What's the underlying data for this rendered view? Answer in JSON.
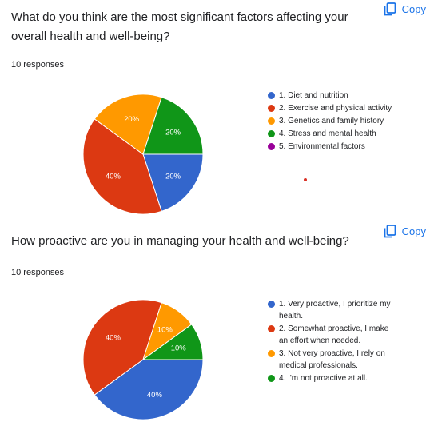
{
  "colors": {
    "blue": "#3366cc",
    "red": "#dc3912",
    "orange": "#ff9900",
    "green": "#109618",
    "purple": "#990099",
    "accent": "#1a73e8"
  },
  "copy_label": "Copy",
  "questions": [
    {
      "title": "What do you think are the most significant factors affecting your overall health and well-being?",
      "responses": "10 responses",
      "legend": [
        {
          "label": "1. Diet and nutrition",
          "color": "#3366cc"
        },
        {
          "label": "2. Exercise and physical activity",
          "color": "#dc3912"
        },
        {
          "label": "3. Genetics and family history",
          "color": "#ff9900"
        },
        {
          "label": "4. Stress and mental health",
          "color": "#109618"
        },
        {
          "label": "5. Environmental factors",
          "color": "#990099"
        }
      ],
      "chart_data": {
        "type": "pie",
        "slices": [
          {
            "label": "1. Diet and nutrition",
            "percent": 20,
            "display": "20%"
          },
          {
            "label": "2. Exercise and physical activity",
            "percent": 40,
            "display": "40%"
          },
          {
            "label": "3. Genetics and family history",
            "percent": 20,
            "display": "20%"
          },
          {
            "label": "4. Stress and mental health",
            "percent": 20,
            "display": "20%"
          },
          {
            "label": "5. Environmental factors",
            "percent": 0,
            "display": ""
          }
        ]
      }
    },
    {
      "title": "How proactive are you in managing your health and well-being?",
      "responses": "10 responses",
      "legend": [
        {
          "label": "1. Very proactive, I prioritize my health.",
          "color": "#3366cc"
        },
        {
          "label": "2. Somewhat proactive, I make an effort when needed.",
          "color": "#dc3912"
        },
        {
          "label": "3. Not very proactive, I rely on medical professionals.",
          "color": "#ff9900"
        },
        {
          "label": "4. I'm not proactive at all.",
          "color": "#109618"
        }
      ],
      "chart_data": {
        "type": "pie",
        "slices": [
          {
            "label": "1. Very proactive, I prioritize my health.",
            "percent": 40,
            "display": "40%"
          },
          {
            "label": "2. Somewhat proactive, I make an effort when needed.",
            "percent": 40,
            "display": "40%"
          },
          {
            "label": "3. Not very proactive, I rely on medical professionals.",
            "percent": 10,
            "display": "10%"
          },
          {
            "label": "4. I'm not proactive at all.",
            "percent": 10,
            "display": "10%"
          }
        ]
      }
    }
  ]
}
